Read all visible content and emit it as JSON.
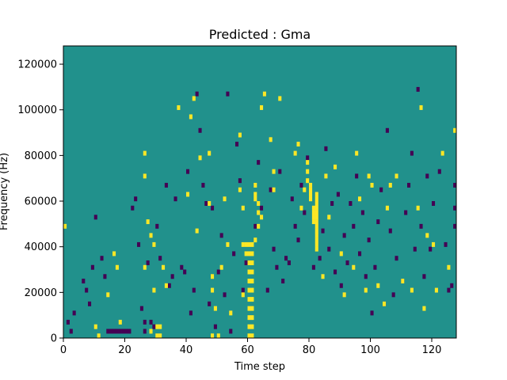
{
  "chart_data": {
    "type": "heatmap",
    "title": "Predicted : Gma",
    "xlabel": "Time step",
    "ylabel": "Frequency (Hz)",
    "xlim": [
      0,
      128
    ],
    "ylim": [
      0,
      128000
    ],
    "xticks": [
      0,
      20,
      40,
      60,
      80,
      100,
      120
    ],
    "yticks": [
      0,
      20000,
      40000,
      60000,
      80000,
      100000,
      120000
    ],
    "grid": false,
    "legend": "none",
    "colors": {
      "background": "#21918c",
      "low": "#440154",
      "high": "#fde725"
    },
    "cell_height": 2000,
    "high_cells": [
      [
        0,
        48
      ],
      [
        10,
        4
      ],
      [
        11,
        0
      ],
      [
        14,
        18
      ],
      [
        16,
        36
      ],
      [
        17,
        30
      ],
      [
        18,
        6
      ],
      [
        26,
        30
      ],
      [
        26,
        70
      ],
      [
        26,
        80
      ],
      [
        27,
        50
      ],
      [
        28,
        2
      ],
      [
        28,
        44
      ],
      [
        29,
        20
      ],
      [
        29,
        40
      ],
      [
        30,
        0
      ],
      [
        30,
        4
      ],
      [
        31,
        0
      ],
      [
        31,
        4
      ],
      [
        32,
        30
      ],
      [
        33,
        22
      ],
      [
        37,
        100
      ],
      [
        40,
        62
      ],
      [
        41,
        96
      ],
      [
        42,
        104
      ],
      [
        43,
        46
      ],
      [
        44,
        78
      ],
      [
        47,
        58
      ],
      [
        47,
        80
      ],
      [
        48,
        0
      ],
      [
        48,
        20
      ],
      [
        48,
        26
      ],
      [
        49,
        12
      ],
      [
        50,
        0
      ],
      [
        51,
        30
      ],
      [
        52,
        60
      ],
      [
        53,
        40
      ],
      [
        54,
        10
      ],
      [
        57,
        88
      ],
      [
        57,
        64
      ],
      [
        58,
        18
      ],
      [
        58,
        40
      ],
      [
        58,
        56
      ],
      [
        59,
        40
      ],
      [
        59,
        36
      ],
      [
        60,
        0
      ],
      [
        60,
        4
      ],
      [
        60,
        8
      ],
      [
        60,
        12
      ],
      [
        60,
        16
      ],
      [
        60,
        20
      ],
      [
        60,
        24
      ],
      [
        60,
        28
      ],
      [
        60,
        32
      ],
      [
        60,
        36
      ],
      [
        60,
        40
      ],
      [
        61,
        0
      ],
      [
        61,
        4
      ],
      [
        61,
        8
      ],
      [
        61,
        12
      ],
      [
        61,
        16
      ],
      [
        61,
        20
      ],
      [
        61,
        24
      ],
      [
        61,
        28
      ],
      [
        61,
        32
      ],
      [
        61,
        36
      ],
      [
        61,
        40
      ],
      [
        62,
        42
      ],
      [
        62,
        60
      ],
      [
        62,
        62
      ],
      [
        62,
        66
      ],
      [
        63,
        48
      ],
      [
        63,
        54
      ],
      [
        63,
        58
      ],
      [
        64,
        52
      ],
      [
        64,
        100
      ],
      [
        65,
        106
      ],
      [
        67,
        86
      ],
      [
        68,
        64
      ],
      [
        68,
        72
      ],
      [
        70,
        104
      ],
      [
        75,
        80
      ],
      [
        76,
        84
      ],
      [
        77,
        56
      ],
      [
        78,
        64
      ],
      [
        79,
        68
      ],
      [
        79,
        72
      ],
      [
        79,
        76
      ],
      [
        80,
        60
      ],
      [
        80,
        62
      ],
      [
        80,
        64
      ],
      [
        80,
        66
      ],
      [
        81,
        50
      ],
      [
        81,
        52
      ],
      [
        81,
        54
      ],
      [
        81,
        56
      ],
      [
        82,
        38
      ],
      [
        82,
        40
      ],
      [
        82,
        42
      ],
      [
        82,
        44
      ],
      [
        82,
        46
      ],
      [
        82,
        48
      ],
      [
        82,
        50
      ],
      [
        82,
        52
      ],
      [
        82,
        54
      ],
      [
        82,
        56
      ],
      [
        82,
        58
      ],
      [
        82,
        60
      ],
      [
        82,
        62
      ],
      [
        84,
        26
      ],
      [
        85,
        70
      ],
      [
        86,
        52
      ],
      [
        88,
        74
      ],
      [
        90,
        36
      ],
      [
        91,
        18
      ],
      [
        94,
        30
      ],
      [
        95,
        80
      ],
      [
        96,
        60
      ],
      [
        98,
        20
      ],
      [
        99,
        70
      ],
      [
        100,
        66
      ],
      [
        102,
        22
      ],
      [
        104,
        14
      ],
      [
        105,
        56
      ],
      [
        106,
        66
      ],
      [
        108,
        70
      ],
      [
        110,
        24
      ],
      [
        113,
        20
      ],
      [
        115,
        56
      ],
      [
        116,
        100
      ],
      [
        117,
        12
      ],
      [
        118,
        44
      ],
      [
        120,
        40
      ],
      [
        121,
        20
      ],
      [
        123,
        80
      ],
      [
        125,
        30
      ],
      [
        128,
        90
      ]
    ],
    "low_cells": [
      [
        1,
        6
      ],
      [
        2,
        2
      ],
      [
        3,
        10
      ],
      [
        6,
        24
      ],
      [
        7,
        20
      ],
      [
        8,
        14
      ],
      [
        9,
        30
      ],
      [
        10,
        52
      ],
      [
        12,
        34
      ],
      [
        13,
        26
      ],
      [
        14,
        2
      ],
      [
        15,
        2
      ],
      [
        16,
        2
      ],
      [
        17,
        2
      ],
      [
        18,
        2
      ],
      [
        19,
        2
      ],
      [
        20,
        2
      ],
      [
        21,
        2
      ],
      [
        22,
        56
      ],
      [
        23,
        60
      ],
      [
        24,
        40
      ],
      [
        25,
        12
      ],
      [
        26,
        6
      ],
      [
        26,
        2
      ],
      [
        27,
        32
      ],
      [
        28,
        6
      ],
      [
        29,
        4
      ],
      [
        30,
        48
      ],
      [
        31,
        34
      ],
      [
        33,
        66
      ],
      [
        34,
        22
      ],
      [
        35,
        26
      ],
      [
        36,
        60
      ],
      [
        38,
        30
      ],
      [
        39,
        28
      ],
      [
        40,
        72
      ],
      [
        41,
        10
      ],
      [
        42,
        20
      ],
      [
        43,
        106
      ],
      [
        44,
        90
      ],
      [
        45,
        66
      ],
      [
        46,
        58
      ],
      [
        47,
        14
      ],
      [
        48,
        56
      ],
      [
        49,
        4
      ],
      [
        50,
        28
      ],
      [
        51,
        44
      ],
      [
        52,
        18
      ],
      [
        53,
        106
      ],
      [
        54,
        2
      ],
      [
        55,
        36
      ],
      [
        56,
        84
      ],
      [
        57,
        68
      ],
      [
        58,
        20
      ],
      [
        59,
        32
      ],
      [
        62,
        48
      ],
      [
        63,
        76
      ],
      [
        64,
        56
      ],
      [
        66,
        20
      ],
      [
        67,
        64
      ],
      [
        68,
        38
      ],
      [
        69,
        30
      ],
      [
        70,
        72
      ],
      [
        71,
        24
      ],
      [
        72,
        34
      ],
      [
        73,
        32
      ],
      [
        74,
        60
      ],
      [
        75,
        48
      ],
      [
        76,
        42
      ],
      [
        77,
        66
      ],
      [
        78,
        54
      ],
      [
        79,
        78
      ],
      [
        81,
        30
      ],
      [
        83,
        34
      ],
      [
        84,
        46
      ],
      [
        85,
        82
      ],
      [
        86,
        38
      ],
      [
        87,
        58
      ],
      [
        88,
        28
      ],
      [
        89,
        62
      ],
      [
        90,
        22
      ],
      [
        91,
        44
      ],
      [
        92,
        32
      ],
      [
        93,
        58
      ],
      [
        94,
        48
      ],
      [
        95,
        70
      ],
      [
        96,
        36
      ],
      [
        97,
        54
      ],
      [
        98,
        26
      ],
      [
        99,
        42
      ],
      [
        100,
        10
      ],
      [
        101,
        30
      ],
      [
        102,
        50
      ],
      [
        103,
        64
      ],
      [
        104,
        14
      ],
      [
        105,
        90
      ],
      [
        106,
        46
      ],
      [
        107,
        18
      ],
      [
        108,
        34
      ],
      [
        110,
        24
      ],
      [
        111,
        54
      ],
      [
        112,
        66
      ],
      [
        113,
        80
      ],
      [
        114,
        38
      ],
      [
        115,
        108
      ],
      [
        116,
        48
      ],
      [
        117,
        26
      ],
      [
        118,
        70
      ],
      [
        119,
        38
      ],
      [
        120,
        58
      ],
      [
        122,
        72
      ],
      [
        124,
        40
      ],
      [
        125,
        20
      ],
      [
        126,
        22
      ],
      [
        127,
        48
      ],
      [
        128,
        56
      ],
      [
        128,
        66
      ]
    ]
  }
}
